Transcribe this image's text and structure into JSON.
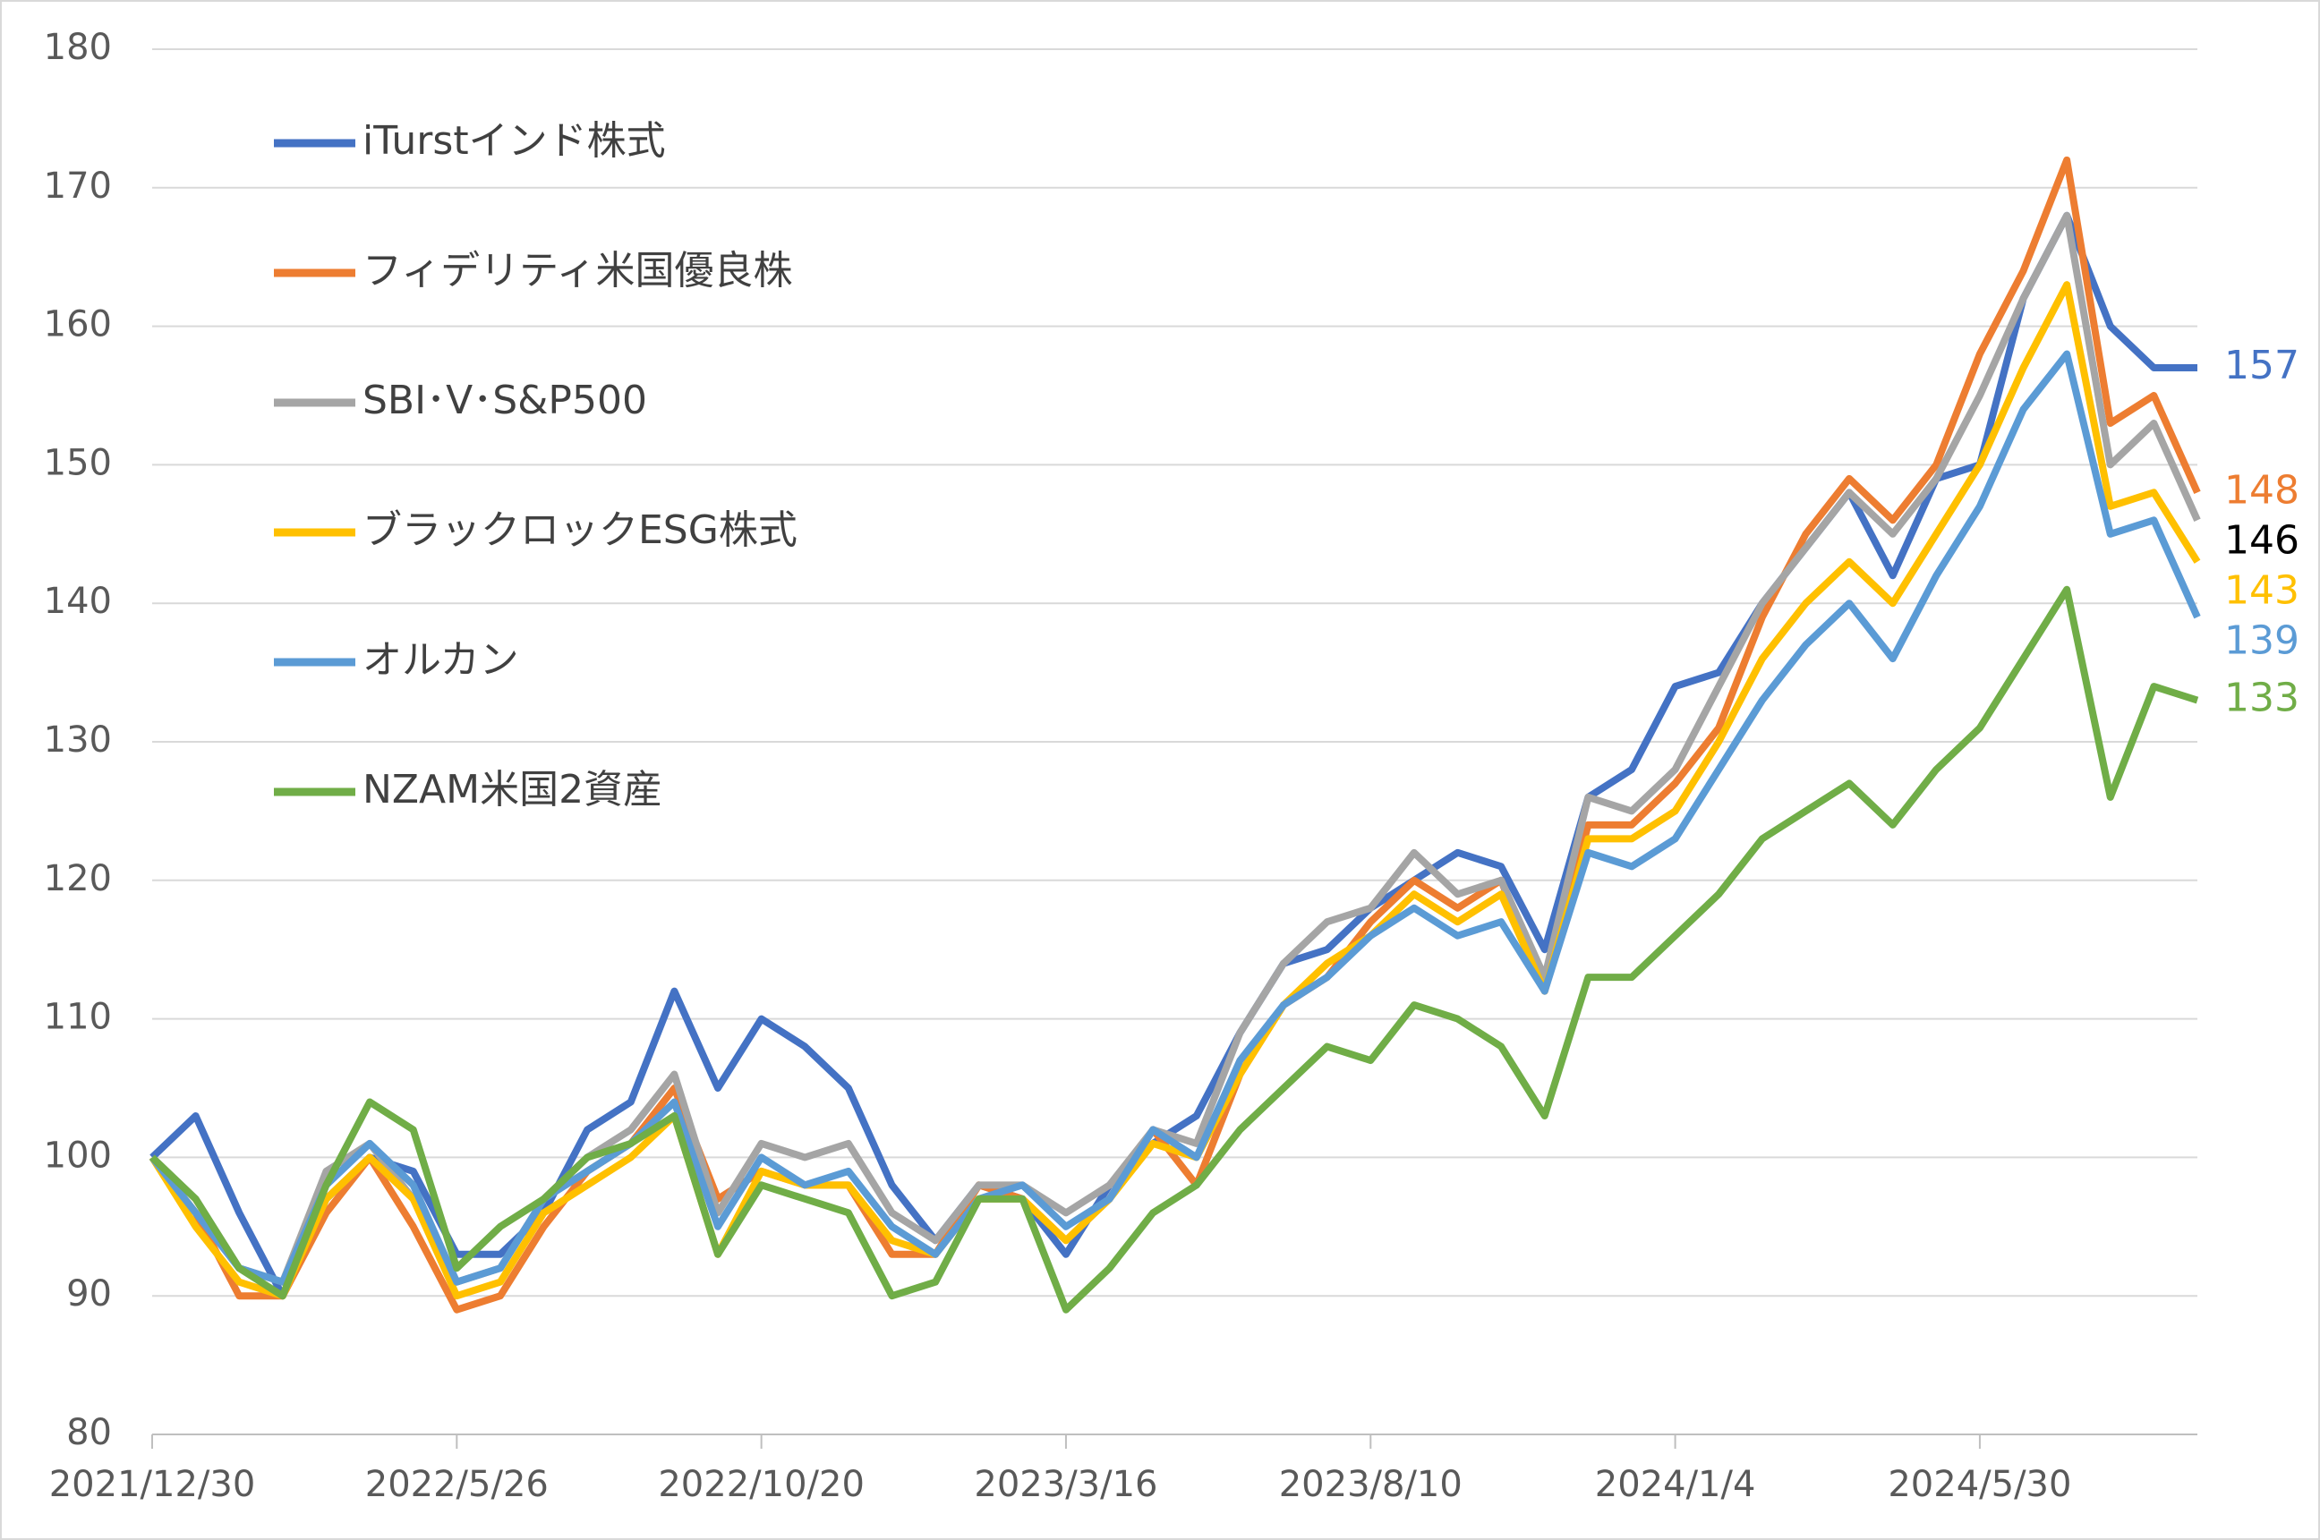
{
  "chart_data": {
    "type": "line",
    "x": [
      "2021/12/30",
      "2022/1/20",
      "2022/2/10",
      "2022/3/3",
      "2022/3/24",
      "2022/4/14",
      "2022/5/5",
      "2022/5/26",
      "2022/6/16",
      "2022/7/7",
      "2022/7/28",
      "2022/8/18",
      "2022/9/8",
      "2022/9/29",
      "2022/10/20",
      "2022/11/10",
      "2022/12/1",
      "2022/12/22",
      "2023/1/12",
      "2023/2/2",
      "2023/2/23",
      "2023/3/16",
      "2023/4/6",
      "2023/4/27",
      "2023/5/18",
      "2023/6/8",
      "2023/6/29",
      "2023/7/20",
      "2023/8/10",
      "2023/8/31",
      "2023/9/21",
      "2023/10/12",
      "2023/11/2",
      "2023/11/23",
      "2023/12/14",
      "2024/1/4",
      "2024/1/25",
      "2024/2/15",
      "2024/3/7",
      "2024/3/28",
      "2024/4/18",
      "2024/5/9",
      "2024/5/30",
      "2024/6/20",
      "2024/7/11",
      "2024/8/1",
      "2024/8/22",
      "2024/9/12"
    ],
    "series": [
      {
        "name": "iTurstインド株式",
        "color": "#4472c4",
        "label_color": "#4472c4",
        "values": [
          100,
          103,
          96,
          90,
          97,
          100,
          99,
          93,
          93,
          96,
          102,
          104,
          112,
          105,
          110,
          108,
          105,
          98,
          94,
          98,
          97,
          93,
          98,
          101,
          103,
          109,
          114,
          115,
          118,
          120,
          122,
          121,
          115,
          126,
          128,
          134,
          135,
          140,
          144,
          148,
          142,
          149,
          150,
          162,
          168,
          160,
          157,
          157
        ]
      },
      {
        "name": "フィデリティ米国優良株",
        "color": "#ed7d31",
        "label_color": "#ed7d31",
        "values": [
          100,
          96,
          90,
          90,
          96,
          100,
          95,
          89,
          90,
          95,
          99,
          101,
          105,
          97,
          99,
          98,
          98,
          93,
          93,
          98,
          97,
          94,
          97,
          102,
          98,
          106,
          111,
          113,
          117,
          120,
          118,
          120,
          112,
          124,
          124,
          127,
          131,
          139,
          145,
          149,
          146,
          150,
          158,
          164,
          172,
          153,
          155,
          148
        ]
      },
      {
        "name": "SBI･V･S&P500",
        "color": "#a5a5a5",
        "label_color": "#000000",
        "values": [
          100,
          97,
          92,
          91,
          99,
          101,
          97,
          91,
          92,
          97,
          100,
          102,
          106,
          96,
          101,
          100,
          101,
          96,
          94,
          98,
          98,
          96,
          98,
          102,
          101,
          109,
          114,
          117,
          118,
          122,
          119,
          120,
          113,
          126,
          125,
          128,
          134,
          140,
          144,
          148,
          145,
          149,
          155,
          162,
          168,
          150,
          153,
          146
        ]
      },
      {
        "name": "ブラックロックESG株式",
        "color": "#ffc000",
        "label_color": "#ffc000",
        "values": [
          100,
          95,
          91,
          90,
          97,
          100,
          97,
          90,
          91,
          96,
          98,
          100,
          103,
          93,
          99,
          98,
          98,
          94,
          93,
          97,
          97,
          94,
          97,
          101,
          100,
          106,
          111,
          114,
          116,
          119,
          117,
          119,
          112,
          123,
          123,
          125,
          130,
          136,
          140,
          143,
          140,
          145,
          150,
          157,
          163,
          147,
          148,
          143
        ]
      },
      {
        "name": "オルカン",
        "color": "#5b9bd5",
        "label_color": "#5b9bd5",
        "values": [
          100,
          96,
          92,
          91,
          98,
          101,
          98,
          91,
          92,
          97,
          99,
          101,
          104,
          95,
          100,
          98,
          99,
          95,
          93,
          97,
          98,
          95,
          97,
          102,
          100,
          107,
          111,
          113,
          116,
          118,
          116,
          117,
          112,
          122,
          121,
          123,
          128,
          133,
          137,
          140,
          136,
          142,
          147,
          154,
          158,
          145,
          146,
          139
        ]
      },
      {
        "name": "NZAM米国2資産",
        "color": "#70ad47",
        "label_color": "#70ad47",
        "values": [
          100,
          97,
          92,
          90,
          98,
          104,
          102,
          92,
          95,
          97,
          100,
          101,
          103,
          93,
          98,
          97,
          96,
          90,
          91,
          97,
          97,
          89,
          92,
          96,
          98,
          102,
          105,
          108,
          107,
          111,
          110,
          108,
          103,
          113,
          113,
          116,
          119,
          123,
          125,
          127,
          124,
          128,
          131,
          136,
          141,
          126,
          134,
          133
        ]
      }
    ],
    "xlim": [
      "2021/12/30",
      "2024/9/12"
    ],
    "xticks": [
      "2021/12/30",
      "2022/5/26",
      "2022/10/20",
      "2023/3/16",
      "2023/8/10",
      "2024/1/4",
      "2024/5/30"
    ],
    "ylim": [
      80,
      180
    ],
    "yticks": [
      80,
      90,
      100,
      110,
      120,
      130,
      140,
      150,
      160,
      170,
      180
    ],
    "grid": true,
    "legend": "upper left"
  }
}
